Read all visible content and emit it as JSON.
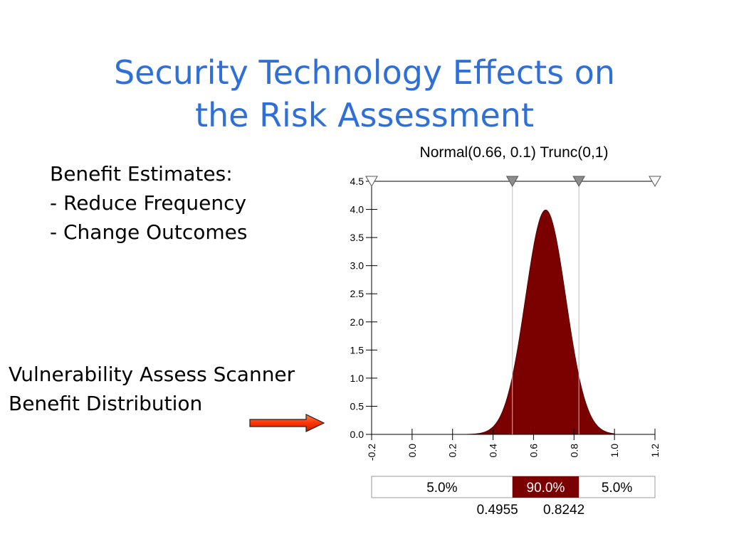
{
  "slide": {
    "title_line1": "Security Technology Effects on",
    "title_line2": "the Risk Assessment",
    "benefits": [
      "Benefit Estimates:",
      "- Reduce Frequency",
      "- Change Outcomes"
    ],
    "callout_line1": "Vulnerability Assess Scanner",
    "callout_line2": "Benefit Distribution"
  },
  "colors": {
    "title": "#2f6fd8",
    "fill": "#7b0000",
    "arrow": "#ff3300"
  },
  "chart_data": {
    "type": "area",
    "title": "Normal(0.66, 0.1) Trunc(0,1)",
    "distribution": {
      "mean": 0.66,
      "sd": 0.1,
      "trunc_low": 0,
      "trunc_high": 1
    },
    "xlim": [
      -0.2,
      1.2
    ],
    "ylim": [
      0,
      4.5
    ],
    "x_ticks": [
      "-0.2",
      "0.0",
      "0.2",
      "0.4",
      "0.6",
      "0.8",
      "1.0",
      "1.2"
    ],
    "y_ticks": [
      "0.0",
      "0.5",
      "1.0",
      "1.5",
      "2.0",
      "2.5",
      "3.0",
      "3.5",
      "4.0",
      "4.5"
    ],
    "markers": [
      0.4955,
      0.8242
    ],
    "band": {
      "left_pct": "5.0%",
      "middle_pct": "90.0%",
      "right_pct": "5.0%",
      "low_value": "0.4955",
      "high_value": "0.8242"
    }
  }
}
